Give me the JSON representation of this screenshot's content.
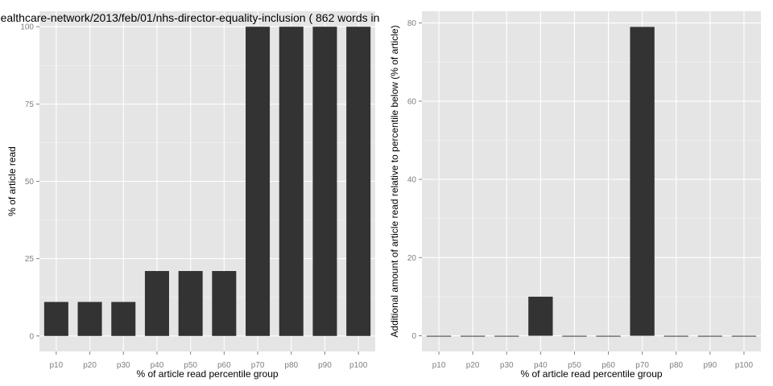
{
  "chart_data": [
    {
      "type": "bar",
      "title": "ealthcare-network/2013/feb/01/nhs-director-equality-inclusion ( 862 words in",
      "xlabel": "% of article read percentile group",
      "ylabel": "% of article read",
      "categories": [
        "p10",
        "p20",
        "p30",
        "p40",
        "p50",
        "p60",
        "p70",
        "p80",
        "p90",
        "p100"
      ],
      "values": [
        11,
        11,
        11,
        21,
        21,
        21,
        100,
        100,
        100,
        100
      ],
      "ylim": [
        -5,
        105
      ],
      "yticks": [
        0,
        25,
        50,
        75,
        100
      ],
      "grid": true,
      "colors": {
        "panel": "#e5e5e5",
        "grid_major": "#ffffff",
        "grid_minor": "#f2f2f2",
        "bar": "#333333"
      }
    },
    {
      "type": "bar",
      "title": "",
      "xlabel": "% of article read percentile group",
      "ylabel": "Additional amount of article read relative to percentile below (% of article)",
      "categories": [
        "p10",
        "p20",
        "p30",
        "p40",
        "p50",
        "p60",
        "p70",
        "p80",
        "p90",
        "p100"
      ],
      "values": [
        0,
        0,
        0,
        10,
        0,
        0,
        79,
        0,
        0,
        0
      ],
      "ylim": [
        -4,
        83
      ],
      "yticks": [
        0,
        20,
        40,
        60,
        80
      ],
      "grid": true,
      "colors": {
        "panel": "#e5e5e5",
        "grid_major": "#ffffff",
        "grid_minor": "#f2f2f2",
        "bar": "#333333"
      }
    }
  ]
}
